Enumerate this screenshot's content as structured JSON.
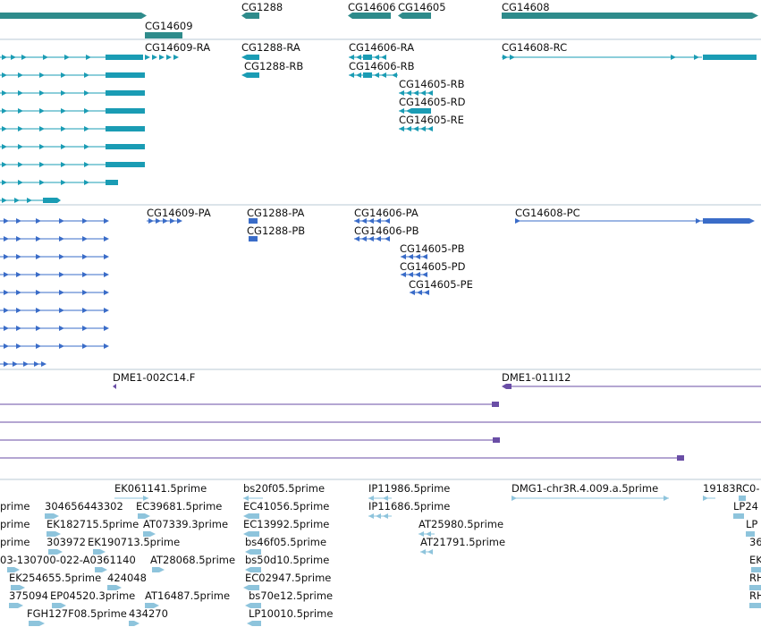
{
  "colors": {
    "gene": "#2e8b8b",
    "transcript": "#1a9cb4",
    "protein": "#3a6cc8",
    "clone": "#6a4ea6",
    "est": "#8ec4dc",
    "divider": "#b8c8d4"
  },
  "tracks": {
    "genes": {
      "labels": [
        "CG14609",
        "CG1288",
        "CG14606",
        "CG14605",
        "CG14608"
      ]
    },
    "transcripts": {
      "labels": [
        "CG14609-RA",
        "CG1288-RA",
        "CG1288-RB",
        "CG14606-RA",
        "CG14606-RB",
        "CG14605-RB",
        "CG14605-RD",
        "CG14605-RE",
        "CG14608-RC"
      ]
    },
    "proteins": {
      "labels": [
        "CG14609-PA",
        "CG1288-PA",
        "CG1288-PB",
        "CG14606-PA",
        "CG14606-PB",
        "CG14605-PB",
        "CG14605-PD",
        "CG14605-PE",
        "CG14608-PC"
      ]
    },
    "clones": {
      "labels": [
        "DME1-002C14.F",
        "DME1-011I12"
      ]
    },
    "ests": {
      "labels": [
        "EK061141.5prime",
        "bs20f05.5prime",
        "IP11986.5prime",
        "DMG1-chr3R.4.009.a.5prime",
        "19183RC0-",
        "prime",
        "304656443302",
        "EC39681.5prime",
        "EC41056.5prime",
        "IP11686.5prime",
        "LP24",
        "prime",
        "EK182715.5prime",
        "AT07339.3prime",
        "EC13992.5prime",
        "AT25980.5prime",
        "LP",
        "prime",
        "303972",
        "EK190713.5prime",
        "bs46f05.5prime",
        "AT21791.5prime",
        "36",
        "03-130700-022-A0361140",
        "AT28068.5prime",
        "bs50d10.5prime",
        "EK",
        "EK254655.5prime",
        "424048",
        "EC02947.5prime",
        "RH",
        "375094",
        "EP04520.3prime",
        "AT16487.5prime",
        "bs70e12.5prime",
        "RH",
        "FGH127F08.5prime",
        "434270",
        "LP10010.5prime"
      ]
    }
  }
}
